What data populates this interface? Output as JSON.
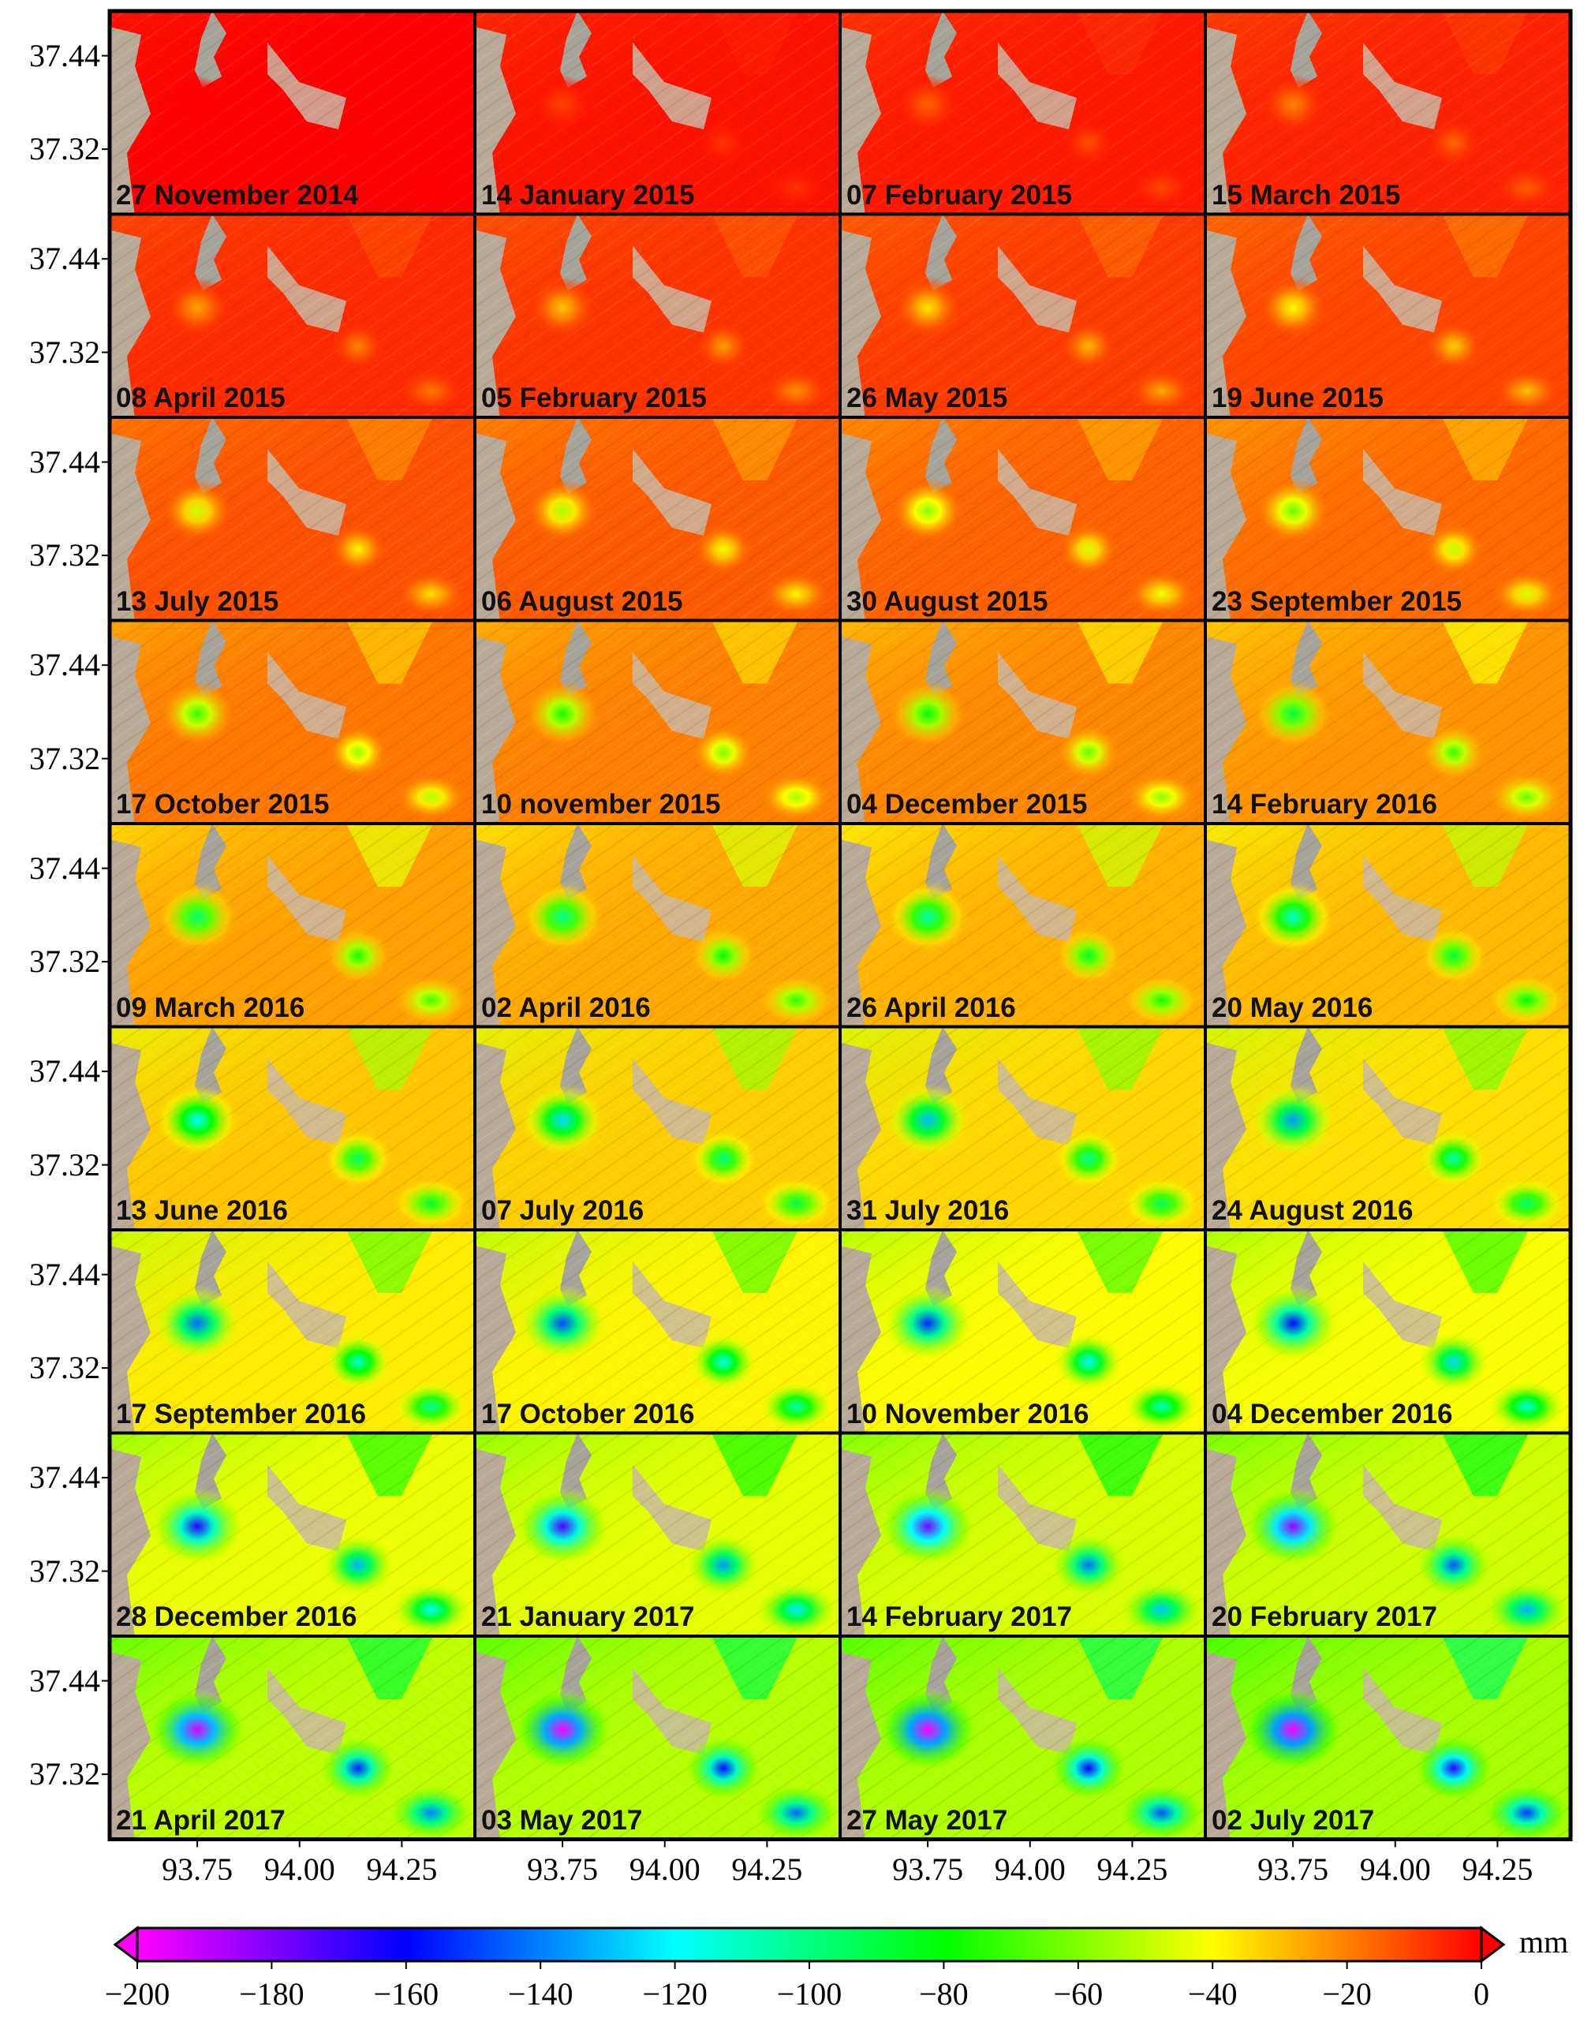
{
  "figure": {
    "y_tick_labels": [
      "37.44",
      "37.32"
    ],
    "x_tick_labels": [
      "93.75",
      "94.00",
      "94.25"
    ],
    "colorbar": {
      "unit": "mm",
      "min": -200,
      "max": 0,
      "ticks": [
        "−200",
        "−180",
        "−160",
        "−140",
        "−120",
        "−100",
        "−80",
        "−60",
        "−40",
        "−20",
        "0"
      ],
      "colors": [
        "#ff00ff",
        "#8000ff",
        "#0000ff",
        "#0080ff",
        "#00ffff",
        "#00ff80",
        "#00ff00",
        "#80ff00",
        "#ffff00",
        "#ff8000",
        "#ff0000"
      ]
    },
    "panels": [
      {
        "date": "27 November 2014",
        "subsidence": 0.0
      },
      {
        "date": "14 January 2015",
        "subsidence": 0.04
      },
      {
        "date": "07 February 2015",
        "subsidence": 0.06
      },
      {
        "date": "15 March 2015",
        "subsidence": 0.08
      },
      {
        "date": "08 April 2015",
        "subsidence": 0.1
      },
      {
        "date": "05 February 2015",
        "subsidence": 0.12
      },
      {
        "date": "26 May 2015",
        "subsidence": 0.14
      },
      {
        "date": "19 June 2015",
        "subsidence": 0.16
      },
      {
        "date": "13 July 2015",
        "subsidence": 0.19
      },
      {
        "date": "06 August 2015",
        "subsidence": 0.21
      },
      {
        "date": "30 August 2015",
        "subsidence": 0.23
      },
      {
        "date": "23 September 2015",
        "subsidence": 0.25
      },
      {
        "date": "17 October 2015",
        "subsidence": 0.28
      },
      {
        "date": "10 november 2015",
        "subsidence": 0.3
      },
      {
        "date": "04 December 2015",
        "subsidence": 0.32
      },
      {
        "date": "14 February 2016",
        "subsidence": 0.35
      },
      {
        "date": "09 March 2016",
        "subsidence": 0.38
      },
      {
        "date": "02 April 2016",
        "subsidence": 0.4
      },
      {
        "date": "26 April 2016",
        "subsidence": 0.42
      },
      {
        "date": "20 May 2016",
        "subsidence": 0.44
      },
      {
        "date": "13 June 2016",
        "subsidence": 0.47
      },
      {
        "date": "07 July 2016",
        "subsidence": 0.49
      },
      {
        "date": "31 July 2016",
        "subsidence": 0.51
      },
      {
        "date": "24 August 2016",
        "subsidence": 0.53
      },
      {
        "date": "17 September 2016",
        "subsidence": 0.56
      },
      {
        "date": "17 October 2016",
        "subsidence": 0.58
      },
      {
        "date": "10 November 2016",
        "subsidence": 0.6
      },
      {
        "date": "04 December 2016",
        "subsidence": 0.62
      },
      {
        "date": "28 December 2016",
        "subsidence": 0.65
      },
      {
        "date": "21 January 2017",
        "subsidence": 0.67
      },
      {
        "date": "14 February 2017",
        "subsidence": 0.7
      },
      {
        "date": "20 February 2017",
        "subsidence": 0.72
      },
      {
        "date": "21 April 2017",
        "subsidence": 0.76
      },
      {
        "date": "03 May 2017",
        "subsidence": 0.78
      },
      {
        "date": "27 May 2017",
        "subsidence": 0.8
      },
      {
        "date": "02 July 2017",
        "subsidence": 0.82
      }
    ]
  }
}
